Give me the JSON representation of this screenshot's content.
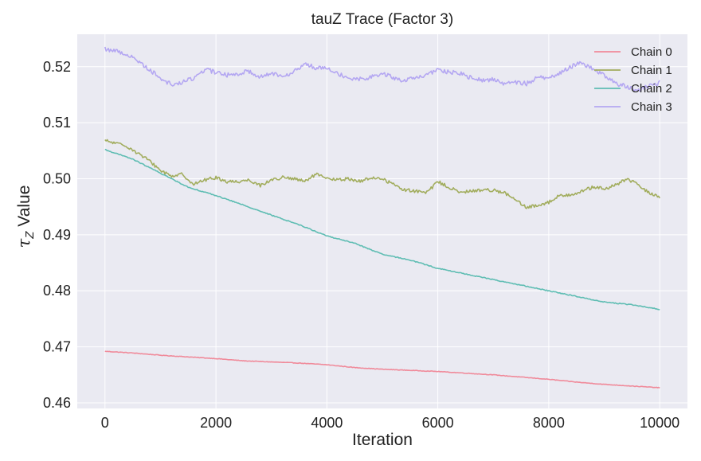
{
  "chart_data": {
    "type": "line",
    "title": "tauZ Trace (Factor 3)",
    "xlabel": "Iteration",
    "ylabel_symbol": "τ",
    "ylabel_subscript": "Z",
    "ylabel_rest": " Value",
    "xlim": [
      -500,
      10500
    ],
    "ylim": [
      0.459,
      0.5258
    ],
    "xticks": [
      0,
      2000,
      4000,
      6000,
      8000,
      10000
    ],
    "xtick_labels": [
      "0",
      "2000",
      "4000",
      "6000",
      "8000",
      "10000"
    ],
    "yticks": [
      0.46,
      0.47,
      0.48,
      0.49,
      0.5,
      0.51,
      0.52
    ],
    "ytick_labels": [
      "0.46",
      "0.47",
      "0.48",
      "0.49",
      "0.50",
      "0.51",
      "0.52"
    ],
    "grid": true,
    "legend_position": "top-right",
    "background": "#eaeaf2",
    "series": [
      {
        "name": "Chain 0",
        "color": "#f08a9a",
        "noise": 5e-05,
        "x": [
          0,
          500,
          1000,
          1500,
          2000,
          2500,
          3000,
          3500,
          4000,
          4500,
          5000,
          5500,
          6000,
          6500,
          7000,
          7500,
          8000,
          8500,
          9000,
          9500,
          10000
        ],
        "values": [
          0.4692,
          0.4689,
          0.4685,
          0.4682,
          0.4679,
          0.4675,
          0.4673,
          0.4671,
          0.4668,
          0.4663,
          0.466,
          0.4658,
          0.4656,
          0.4653,
          0.465,
          0.4646,
          0.4642,
          0.4637,
          0.4633,
          0.463,
          0.4627
        ]
      },
      {
        "name": "Chain 1",
        "color": "#a2ad5e",
        "noise": 0.0003,
        "x": [
          0,
          200,
          400,
          600,
          800,
          1000,
          1200,
          1400,
          1600,
          1800,
          2000,
          2200,
          2400,
          2600,
          2800,
          3000,
          3200,
          3400,
          3600,
          3800,
          4000,
          4200,
          4400,
          4600,
          4800,
          5000,
          5200,
          5400,
          5600,
          5800,
          6000,
          6200,
          6400,
          6600,
          6800,
          7000,
          7200,
          7400,
          7600,
          7800,
          8000,
          8200,
          8400,
          8600,
          8800,
          9000,
          9200,
          9400,
          9600,
          9800,
          10000
        ],
        "values": [
          0.5068,
          0.5063,
          0.5058,
          0.5045,
          0.5032,
          0.5015,
          0.5005,
          0.5008,
          0.499,
          0.4998,
          0.5002,
          0.4995,
          0.4995,
          0.4998,
          0.4988,
          0.4998,
          0.5002,
          0.5,
          0.4995,
          0.5008,
          0.5,
          0.4998,
          0.5,
          0.4995,
          0.5002,
          0.5,
          0.499,
          0.498,
          0.4978,
          0.4975,
          0.4995,
          0.4985,
          0.4975,
          0.4978,
          0.498,
          0.498,
          0.4975,
          0.4962,
          0.4948,
          0.4953,
          0.4958,
          0.497,
          0.4972,
          0.4978,
          0.4985,
          0.4982,
          0.4988,
          0.5,
          0.499,
          0.4975,
          0.4968
        ]
      },
      {
        "name": "Chain 2",
        "color": "#5fbdb3",
        "noise": 8e-05,
        "x": [
          0,
          500,
          1000,
          1500,
          2000,
          2500,
          3000,
          3500,
          4000,
          4500,
          5000,
          5500,
          6000,
          6500,
          7000,
          7500,
          8000,
          8500,
          9000,
          9500,
          10000
        ],
        "values": [
          0.5052,
          0.5035,
          0.501,
          0.4985,
          0.497,
          0.4953,
          0.4935,
          0.4918,
          0.4898,
          0.4885,
          0.4865,
          0.4855,
          0.484,
          0.483,
          0.482,
          0.481,
          0.48,
          0.479,
          0.478,
          0.4775,
          0.4767
        ]
      },
      {
        "name": "Chain 3",
        "color": "#b4a7f2",
        "noise": 0.0004,
        "x": [
          0,
          200,
          400,
          600,
          800,
          1000,
          1200,
          1400,
          1600,
          1800,
          2000,
          2200,
          2400,
          2600,
          2800,
          3000,
          3200,
          3400,
          3600,
          3800,
          4000,
          4200,
          4400,
          4600,
          4800,
          5000,
          5200,
          5400,
          5600,
          5800,
          6000,
          6200,
          6400,
          6600,
          6800,
          7000,
          7200,
          7400,
          7600,
          7800,
          8000,
          8200,
          8400,
          8600,
          8800,
          9000,
          9200,
          9400,
          9600,
          9800,
          10000
        ],
        "values": [
          0.5232,
          0.5228,
          0.5222,
          0.521,
          0.5195,
          0.518,
          0.5168,
          0.5172,
          0.518,
          0.5195,
          0.519,
          0.5185,
          0.5188,
          0.5192,
          0.5182,
          0.5188,
          0.5185,
          0.519,
          0.5205,
          0.5198,
          0.52,
          0.5188,
          0.518,
          0.5178,
          0.5182,
          0.5188,
          0.518,
          0.5175,
          0.518,
          0.5185,
          0.5195,
          0.519,
          0.5188,
          0.518,
          0.5175,
          0.5178,
          0.517,
          0.5172,
          0.517,
          0.518,
          0.5182,
          0.5188,
          0.52,
          0.5208,
          0.5195,
          0.5185,
          0.517,
          0.5165,
          0.5158,
          0.5165,
          0.5172
        ]
      }
    ]
  }
}
